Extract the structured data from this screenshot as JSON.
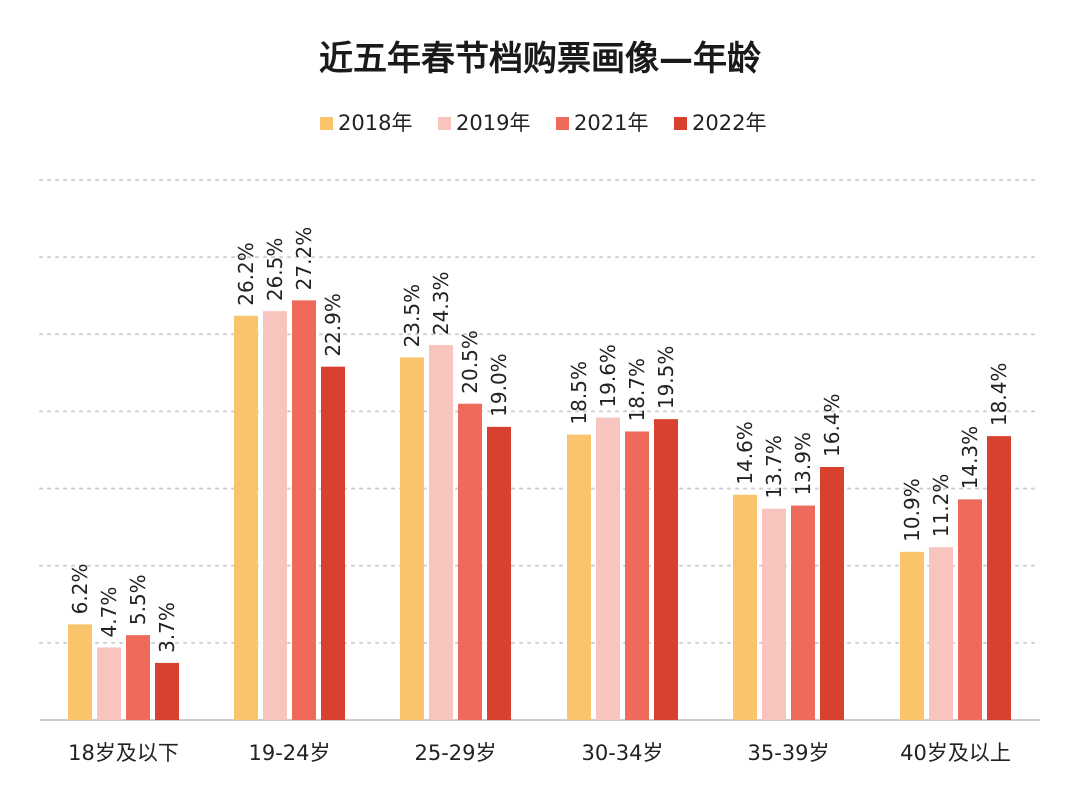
{
  "chart_data": {
    "type": "bar",
    "title": "近五年春节档购票画像—年龄",
    "categories": [
      "18岁及以下",
      "19-24岁",
      "25-29岁",
      "30-34岁",
      "35-39岁",
      "40岁及以上"
    ],
    "series": [
      {
        "name": "2018年",
        "color": "#F9C46B",
        "values": [
          6.2,
          26.2,
          23.5,
          18.5,
          14.6,
          10.9
        ]
      },
      {
        "name": "2019年",
        "color": "#F7C4BE",
        "values": [
          4.7,
          26.5,
          24.3,
          19.6,
          13.7,
          11.2
        ]
      },
      {
        "name": "2021年",
        "color": "#EE6A5B",
        "values": [
          5.5,
          27.2,
          20.5,
          18.7,
          13.9,
          14.3
        ]
      },
      {
        "name": "2022年",
        "color": "#D8402F",
        "values": [
          3.7,
          22.9,
          19.0,
          19.5,
          16.4,
          18.4
        ]
      }
    ],
    "value_suffix": "%",
    "ylim": [
      0,
      35
    ],
    "grid": true,
    "legend_position": "top-center",
    "xlabel": "",
    "ylabel": ""
  }
}
